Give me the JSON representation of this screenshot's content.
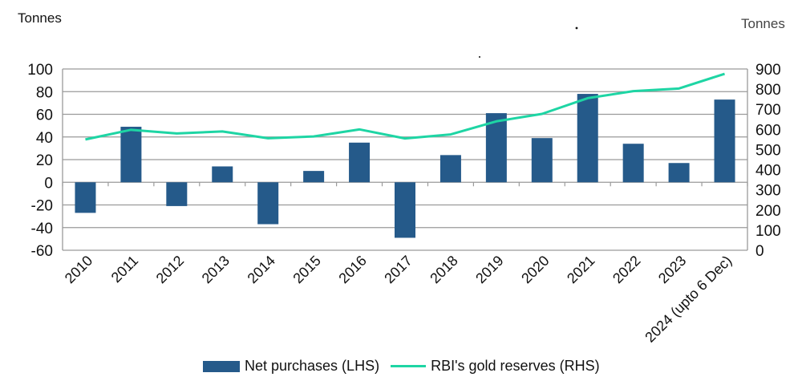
{
  "colors": {
    "bar": "#255A8A",
    "line": "#1ED5A4",
    "grid": "#9a9a9a"
  },
  "units": {
    "left": "Tonnes",
    "right": "Tonnes"
  },
  "legend": {
    "bar_label": "Net purchases (LHS)",
    "line_label": "RBI's gold reserves (RHS)",
    "placement": "bottom"
  },
  "chart_data": {
    "type": "bar",
    "categories": [
      "2010",
      "2011",
      "2012",
      "2013",
      "2014",
      "2015",
      "2016",
      "2017",
      "2018",
      "2019",
      "2020",
      "2021",
      "2022",
      "2023",
      "2024 (upto 6 Dec)"
    ],
    "series": [
      {
        "name": "Net purchases (LHS)",
        "type": "bar",
        "axis": "left",
        "values": [
          -27,
          49,
          -21,
          14,
          -37,
          10,
          35,
          -49,
          24,
          61,
          39,
          78,
          34,
          17,
          73
        ]
      },
      {
        "name": "RBI's gold reserves (RHS)",
        "type": "line",
        "axis": "right",
        "values": [
          550,
          598,
          580,
          590,
          556,
          565,
          600,
          555,
          575,
          640,
          677,
          755,
          790,
          803,
          876
        ]
      }
    ],
    "ylim_left": [
      -60,
      100
    ],
    "yticks_left": [
      -60,
      -40,
      -20,
      0,
      20,
      40,
      60,
      80,
      100
    ],
    "ylim_right": [
      0,
      900
    ],
    "yticks_right": [
      0,
      100,
      200,
      300,
      400,
      500,
      600,
      700,
      800,
      900
    ],
    "grid": true
  }
}
